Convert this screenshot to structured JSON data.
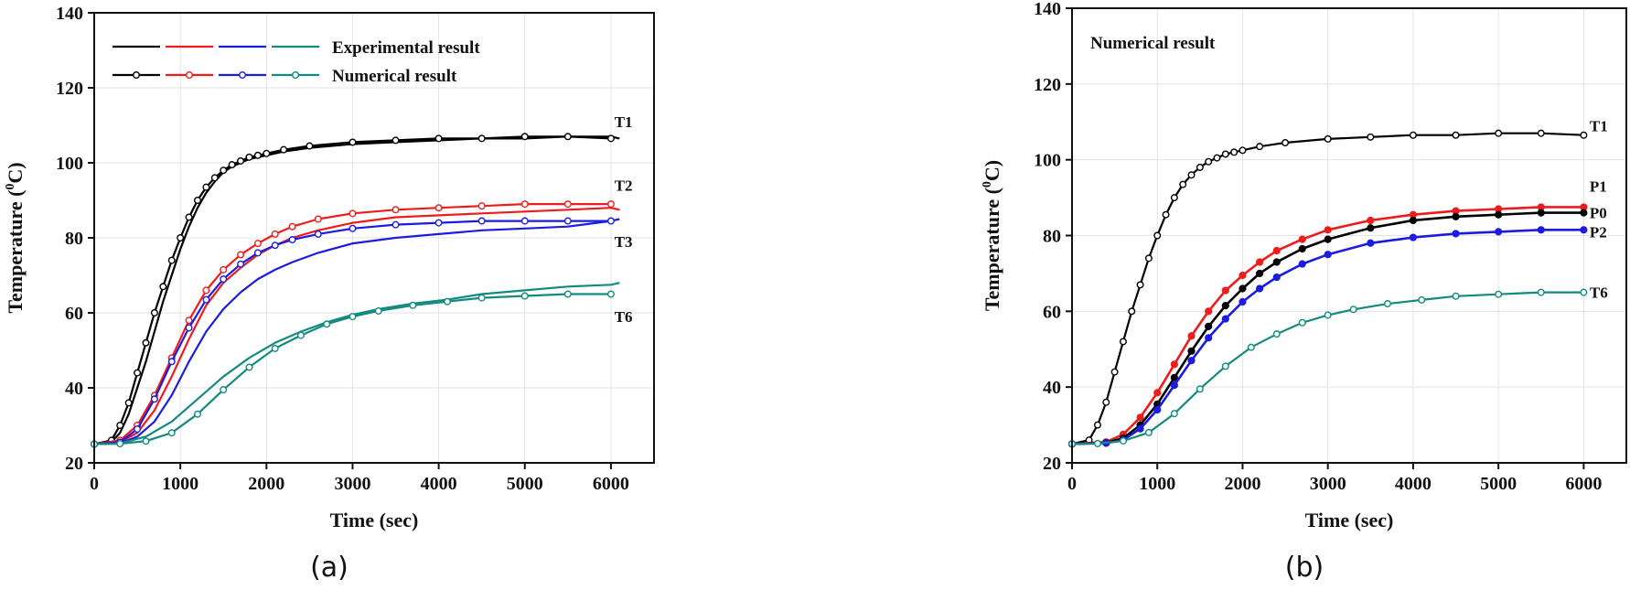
{
  "chart_data": [
    {
      "id": "a",
      "type": "line",
      "caption": "(a)",
      "xlabel": "Time (sec)",
      "ylabel_main": "Temperature (",
      "ylabel_sup": "0",
      "ylabel_tail": "C)",
      "xlim": [
        0,
        6500
      ],
      "ylim": [
        20,
        140
      ],
      "xticks": [
        0,
        1000,
        2000,
        3000,
        4000,
        5000,
        6000
      ],
      "yticks": [
        20,
        40,
        60,
        80,
        100,
        120,
        140
      ],
      "grid": true,
      "legend": {
        "placement": "top-left",
        "rows": [
          {
            "label": "Experimental result",
            "markers": false,
            "colors": [
              "#000000",
              "#ee1c1c",
              "#1c1ce0",
              "#138a80"
            ]
          },
          {
            "label": "Numerical result",
            "markers": true,
            "colors": [
              "#000000",
              "#ee1c1c",
              "#1c1ce0",
              "#138a80"
            ]
          }
        ]
      },
      "annotations": [
        {
          "text": "T1",
          "x": 6040,
          "y": 111
        },
        {
          "text": "T2",
          "x": 6040,
          "y": 94
        },
        {
          "text": "T3",
          "x": 6040,
          "y": 79
        },
        {
          "text": "T6",
          "x": 6040,
          "y": 59
        }
      ],
      "series": [
        {
          "color": "#000000",
          "marker": "none",
          "x": [
            0,
            200,
            300,
            400,
            500,
            600,
            700,
            800,
            900,
            1000,
            1100,
            1200,
            1300,
            1400,
            1500,
            1600,
            1700,
            1800,
            1900,
            2000,
            2200,
            2500,
            3000,
            3500,
            4000,
            4500,
            5000,
            5500,
            6000,
            6100
          ],
          "y": [
            25,
            25.5,
            28,
            33,
            40,
            47,
            55,
            63,
            70,
            77,
            83,
            88,
            92,
            95,
            97.5,
            99,
            100,
            101,
            101.5,
            102,
            103,
            104,
            105,
            105.5,
            106,
            106.5,
            106.5,
            107,
            107,
            106.5
          ]
        },
        {
          "color": "#ee1c1c",
          "marker": "none",
          "x": [
            0,
            300,
            500,
            700,
            900,
            1100,
            1300,
            1500,
            1700,
            1900,
            2100,
            2300,
            2600,
            3000,
            3500,
            4000,
            4500,
            5000,
            5500,
            6000,
            6100
          ],
          "y": [
            25,
            25.5,
            28,
            34,
            43,
            53,
            62,
            68,
            72,
            75.5,
            78,
            80,
            82,
            84,
            85.5,
            86,
            86.5,
            87,
            87.5,
            88,
            87.5
          ]
        },
        {
          "color": "#1c1ce0",
          "marker": "none",
          "x": [
            0,
            300,
            500,
            700,
            900,
            1100,
            1300,
            1500,
            1700,
            1900,
            2100,
            2300,
            2600,
            3000,
            3500,
            4000,
            4500,
            5000,
            5500,
            6000,
            6100
          ],
          "y": [
            25,
            25.2,
            27,
            31,
            38,
            47,
            55,
            61,
            65.5,
            69,
            71.5,
            73.5,
            76,
            78.5,
            80,
            81,
            82,
            82.5,
            83,
            84.5,
            85
          ]
        },
        {
          "color": "#138a80",
          "marker": "none",
          "x": [
            0,
            300,
            600,
            900,
            1200,
            1500,
            1800,
            2100,
            2400,
            2700,
            3000,
            3300,
            3700,
            4100,
            4500,
            5000,
            5500,
            6000,
            6100
          ],
          "y": [
            25,
            25.2,
            27,
            31,
            37,
            43,
            48,
            52,
            55,
            57.5,
            59.5,
            61,
            62.5,
            63.5,
            65,
            66,
            67,
            67.5,
            68
          ]
        },
        {
          "color": "#000000",
          "marker": "open",
          "x": [
            0,
            200,
            300,
            400,
            500,
            600,
            700,
            800,
            900,
            1000,
            1100,
            1200,
            1300,
            1400,
            1500,
            1600,
            1700,
            1800,
            1900,
            2000,
            2200,
            2500,
            3000,
            3500,
            4000,
            4500,
            5000,
            5500,
            6000
          ],
          "y": [
            25,
            26,
            30,
            36,
            44,
            52,
            60,
            67,
            74,
            80,
            85.5,
            90,
            93.5,
            96,
            98,
            99.5,
            100.5,
            101.5,
            102,
            102.5,
            103.5,
            104.5,
            105.5,
            106,
            106.5,
            106.5,
            107,
            107,
            106.5
          ]
        },
        {
          "color": "#ee1c1c",
          "marker": "open",
          "x": [
            0,
            300,
            500,
            700,
            900,
            1100,
            1300,
            1500,
            1700,
            1900,
            2100,
            2300,
            2600,
            3000,
            3500,
            4000,
            4500,
            5000,
            5500,
            6000
          ],
          "y": [
            25,
            26,
            30,
            38,
            48,
            58,
            66,
            71.5,
            75.5,
            78.5,
            81,
            83,
            85,
            86.5,
            87.5,
            88,
            88.5,
            89,
            89,
            89
          ]
        },
        {
          "color": "#1c1ce0",
          "marker": "open",
          "x": [
            0,
            300,
            500,
            700,
            900,
            1100,
            1300,
            1500,
            1700,
            1900,
            2100,
            2300,
            2600,
            3000,
            3500,
            4000,
            4500,
            5000,
            5500,
            6000
          ],
          "y": [
            25,
            25.5,
            29,
            37,
            47,
            56,
            63.5,
            69,
            73,
            76,
            78,
            79.5,
            81,
            82.5,
            83.5,
            84,
            84.5,
            84.5,
            84.5,
            84.5
          ]
        },
        {
          "color": "#138a80",
          "marker": "open",
          "x": [
            0,
            300,
            600,
            900,
            1200,
            1500,
            1800,
            2100,
            2400,
            2700,
            3000,
            3300,
            3700,
            4100,
            4500,
            5000,
            5500,
            6000
          ],
          "y": [
            25,
            25.1,
            25.8,
            28,
            33,
            39.5,
            45.5,
            50.5,
            54,
            57,
            59,
            60.5,
            62,
            63,
            64,
            64.5,
            65,
            65
          ]
        }
      ]
    },
    {
      "id": "b",
      "type": "line",
      "caption": "(b)",
      "xlabel": "Time (sec)",
      "ylabel_main": "Temperature (",
      "ylabel_sup": "0",
      "ylabel_tail": "C)",
      "xlim": [
        0,
        6500
      ],
      "ylim": [
        20,
        140
      ],
      "xticks": [
        0,
        1000,
        2000,
        3000,
        4000,
        5000,
        6000
      ],
      "yticks": [
        20,
        40,
        60,
        80,
        100,
        120,
        140
      ],
      "grid": true,
      "legend": {
        "placement": "top-left",
        "title": "Numerical result"
      },
      "annotations": [
        {
          "text": "T1",
          "x": 6070,
          "y": 109
        },
        {
          "text": "P1",
          "x": 6070,
          "y": 93
        },
        {
          "text": "P0",
          "x": 6070,
          "y": 86
        },
        {
          "text": "P2",
          "x": 6070,
          "y": 81
        },
        {
          "text": "T6",
          "x": 6070,
          "y": 65
        }
      ],
      "series": [
        {
          "color": "#000000",
          "marker": "open",
          "x": [
            0,
            200,
            300,
            400,
            500,
            600,
            700,
            800,
            900,
            1000,
            1100,
            1200,
            1300,
            1400,
            1500,
            1600,
            1700,
            1800,
            1900,
            2000,
            2200,
            2500,
            3000,
            3500,
            4000,
            4500,
            5000,
            5500,
            6000
          ],
          "y": [
            25,
            26,
            30,
            36,
            44,
            52,
            60,
            67,
            74,
            80,
            85.5,
            90,
            93.5,
            96,
            98,
            99.5,
            100.5,
            101.5,
            102,
            102.5,
            103.5,
            104.5,
            105.5,
            106,
            106.5,
            106.5,
            107,
            107,
            106.5
          ]
        },
        {
          "color": "#ee1c1c",
          "marker": "filled",
          "x": [
            0,
            400,
            600,
            800,
            1000,
            1200,
            1400,
            1600,
            1800,
            2000,
            2200,
            2400,
            2700,
            3000,
            3500,
            4000,
            4500,
            5000,
            5500,
            6000
          ],
          "y": [
            25,
            25.5,
            27.5,
            32,
            38.5,
            46,
            53.5,
            60,
            65.5,
            69.5,
            73,
            76,
            79,
            81.5,
            84,
            85.5,
            86.5,
            87,
            87.5,
            87.5
          ]
        },
        {
          "color": "#000000",
          "marker": "filled",
          "x": [
            0,
            400,
            600,
            800,
            1000,
            1200,
            1400,
            1600,
            1800,
            2000,
            2200,
            2400,
            2700,
            3000,
            3500,
            4000,
            4500,
            5000,
            5500,
            6000
          ],
          "y": [
            25,
            25.3,
            26.5,
            30,
            35.5,
            42.5,
            49.5,
            56,
            61.5,
            66,
            70,
            73,
            76.5,
            79,
            82,
            84,
            85,
            85.5,
            86,
            86
          ]
        },
        {
          "color": "#1c1ce0",
          "marker": "filled",
          "x": [
            0,
            400,
            600,
            800,
            1000,
            1200,
            1400,
            1600,
            1800,
            2000,
            2200,
            2400,
            2700,
            3000,
            3500,
            4000,
            4500,
            5000,
            5500,
            6000
          ],
          "y": [
            25,
            25.2,
            26,
            29,
            34,
            40.5,
            47,
            53,
            58,
            62.5,
            66,
            69,
            72.5,
            75,
            78,
            79.5,
            80.5,
            81,
            81.5,
            81.5
          ]
        },
        {
          "color": "#138a80",
          "marker": "open",
          "x": [
            0,
            300,
            600,
            900,
            1200,
            1500,
            1800,
            2100,
            2400,
            2700,
            3000,
            3300,
            3700,
            4100,
            4500,
            5000,
            5500,
            6000
          ],
          "y": [
            25,
            25.1,
            25.8,
            28,
            33,
            39.5,
            45.5,
            50.5,
            54,
            57,
            59,
            60.5,
            62,
            63,
            64,
            64.5,
            65,
            65
          ]
        }
      ]
    }
  ]
}
